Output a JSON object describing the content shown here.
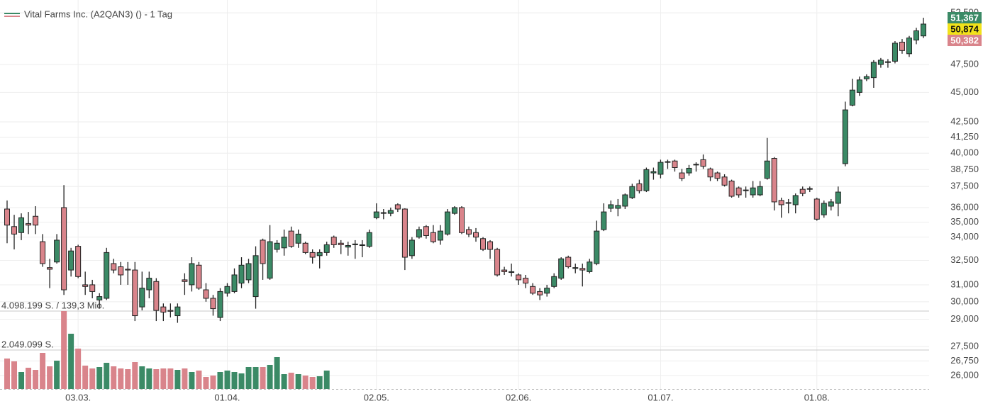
{
  "chart_data": {
    "type": "candlestick",
    "title": "Vital Farms Inc. (A2QAN3) () - 1 Tag",
    "log_scale": true,
    "grid": true,
    "up_color": "#3b8a66",
    "down_color": "#d9848b",
    "legend_position": "top-left",
    "categories": [
      null,
      null,
      null,
      null,
      null,
      null,
      null,
      null,
      null,
      null,
      "03.03.",
      null,
      null,
      null,
      null,
      null,
      null,
      null,
      null,
      null,
      null,
      null,
      null,
      null,
      null,
      null,
      null,
      null,
      null,
      null,
      null,
      "01.04.",
      null,
      null,
      null,
      null,
      null,
      null,
      null,
      null,
      null,
      null,
      null,
      null,
      null,
      null,
      null,
      null,
      null,
      null,
      null,
      null,
      "02.05.",
      null,
      null,
      null,
      null,
      null,
      null,
      null,
      null,
      null,
      null,
      null,
      null,
      null,
      null,
      null,
      null,
      null,
      null,
      null,
      "02.06.",
      null,
      null,
      null,
      null,
      null,
      null,
      null,
      null,
      null,
      null,
      null,
      null,
      null,
      null,
      null,
      null,
      null,
      null,
      null,
      "01.07.",
      null,
      null,
      null,
      null,
      null,
      null,
      null,
      null,
      null,
      null,
      null,
      null,
      null,
      null,
      null,
      null,
      null,
      null,
      null,
      null,
      null,
      "01.08.",
      null,
      null,
      null,
      null,
      null,
      null,
      null,
      null,
      null,
      null,
      null,
      null,
      null,
      null,
      null
    ],
    "open": [
      35.9,
      34.7,
      34.3,
      34.9,
      35.4,
      33.7,
      32.05,
      32.4,
      36.0,
      31.9,
      33.4,
      31.0,
      31.0,
      30.1,
      30.2,
      32.3,
      32.1,
      31.95,
      31.9,
      29.7,
      30.7,
      31.2,
      29.7,
      29.5,
      29.2,
      31.3,
      31.0,
      32.2,
      30.7,
      30.2,
      29.1,
      30.5,
      30.6,
      31.1,
      31.3,
      30.3,
      33.8,
      31.4,
      33.2,
      33.3,
      34.4,
      33.6,
      33.6,
      33.0,
      32.8,
      33.0,
      34.0,
      33.6,
      33.35,
      33.5,
      33.45,
      33.4,
      35.3,
      35.6,
      35.6,
      36.2,
      35.9,
      32.8,
      34.0,
      34.7,
      34.3,
      33.8,
      34.2,
      35.6,
      36.0,
      34.5,
      34.3,
      33.9,
      33.7,
      33.2,
      31.9,
      31.75,
      31.6,
      31.4,
      30.9,
      30.6,
      30.5,
      30.9,
      31.4,
      32.7,
      32.0,
      32.0,
      31.8,
      32.3,
      34.5,
      35.95,
      35.95,
      36.1,
      36.7,
      37.7,
      37.2,
      38.5,
      38.4,
      39.3,
      39.4,
      38.5,
      38.5,
      39.1,
      39.5,
      38.8,
      38.5,
      38.2,
      37.9,
      37.4,
      37.25,
      36.9,
      36.9,
      38.1,
      39.6,
      36.5,
      36.35,
      36.2,
      37.3,
      37.3,
      36.6,
      35.5,
      36.1,
      36.3,
      39.2,
      43.9,
      45.0,
      46.2,
      46.3,
      47.5,
      47.7,
      47.8,
      49.6,
      48.5,
      49.8,
      50.2
    ],
    "high": [
      36.5,
      35.5,
      35.6,
      35.7,
      36.1,
      34.2,
      32.6,
      34.2,
      37.6,
      33.3,
      33.5,
      31.8,
      31.3,
      30.5,
      33.3,
      32.6,
      32.4,
      32.4,
      32.4,
      31.8,
      31.8,
      31.4,
      29.9,
      29.9,
      29.9,
      31.7,
      32.7,
      32.4,
      31.1,
      30.4,
      30.8,
      31.1,
      32.0,
      32.7,
      32.6,
      33.4,
      33.9,
      34.8,
      33.8,
      34.5,
      34.7,
      34.5,
      33.7,
      33.2,
      33.2,
      33.7,
      34.1,
      33.8,
      33.7,
      33.8,
      33.8,
      34.5,
      36.3,
      35.9,
      36.0,
      36.3,
      35.95,
      34.0,
      34.7,
      34.8,
      34.8,
      34.8,
      35.9,
      36.1,
      36.1,
      34.7,
      34.6,
      34.0,
      33.8,
      33.3,
      32.1,
      32.3,
      31.7,
      31.6,
      31.1,
      30.8,
      31.0,
      31.7,
      32.7,
      32.8,
      32.3,
      32.3,
      32.6,
      35.1,
      36.3,
      36.5,
      36.6,
      37.0,
      37.7,
      38.0,
      38.9,
      38.9,
      39.5,
      39.5,
      39.5,
      38.8,
      39.1,
      39.3,
      39.9,
      38.9,
      38.6,
      38.4,
      38.0,
      37.5,
      37.5,
      37.9,
      37.9,
      41.2,
      39.7,
      36.7,
      36.6,
      37.0,
      37.5,
      37.5,
      36.7,
      36.5,
      36.6,
      37.5,
      44.2,
      46.2,
      46.4,
      46.6,
      47.9,
      48.1,
      48.0,
      49.7,
      49.9,
      50.2,
      51.0,
      52.0
    ],
    "low": [
      33.6,
      33.2,
      33.8,
      34.2,
      34.2,
      32.1,
      30.8,
      32.3,
      30.4,
      31.5,
      31.4,
      30.4,
      30.2,
      29.6,
      30.1,
      31.7,
      31.0,
      31.0,
      28.9,
      29.5,
      30.2,
      28.9,
      28.9,
      29.1,
      28.8,
      30.4,
      30.6,
      30.7,
      30.0,
      29.2,
      28.9,
      30.3,
      30.5,
      30.8,
      31.1,
      29.6,
      31.3,
      31.3,
      33.0,
      32.8,
      33.3,
      33.3,
      32.9,
      32.3,
      32.0,
      32.8,
      33.3,
      32.9,
      32.8,
      32.6,
      32.7,
      33.3,
      35.2,
      35.2,
      35.4,
      35.7,
      31.9,
      32.6,
      33.9,
      33.9,
      33.6,
      33.5,
      34.1,
      35.5,
      34.2,
      34.0,
      33.7,
      33.1,
      32.6,
      31.5,
      31.6,
      31.5,
      31.0,
      30.8,
      30.4,
      30.1,
      30.3,
      30.8,
      31.3,
      32.0,
      31.7,
      30.9,
      31.7,
      32.2,
      34.4,
      35.7,
      35.4,
      35.9,
      36.6,
      37.0,
      37.1,
      38.0,
      38.1,
      38.8,
      38.6,
      37.9,
      38.3,
      38.6,
      38.8,
      37.9,
      37.9,
      37.5,
      36.7,
      36.7,
      36.7,
      36.7,
      36.8,
      38.0,
      35.8,
      35.3,
      35.6,
      35.6,
      36.8,
      37.1,
      35.1,
      35.3,
      35.8,
      35.4,
      39.0,
      43.8,
      44.7,
      46.0,
      45.4,
      47.2,
      47.2,
      47.6,
      48.5,
      48.2,
      49.4,
      50.0
    ],
    "close": [
      34.8,
      34.2,
      35.3,
      34.8,
      34.8,
      32.3,
      31.95,
      33.8,
      30.7,
      33.1,
      31.5,
      30.9,
      30.6,
      30.3,
      33.0,
      31.9,
      31.6,
      31.9,
      29.2,
      30.8,
      31.4,
      29.5,
      29.4,
      29.45,
      29.7,
      31.2,
      32.3,
      30.8,
      30.2,
      29.6,
      30.6,
      30.9,
      31.6,
      32.2,
      32.3,
      32.8,
      32.3,
      33.7,
      33.6,
      34.0,
      33.4,
      34.2,
      33.0,
      32.7,
      33.0,
      33.5,
      33.5,
      33.5,
      33.45,
      33.55,
      33.5,
      34.3,
      35.7,
      35.65,
      35.8,
      35.9,
      32.7,
      33.8,
      34.5,
      34.1,
      33.7,
      34.4,
      35.7,
      36.0,
      34.3,
      34.2,
      34.0,
      33.2,
      33.2,
      31.6,
      31.8,
      31.8,
      31.3,
      31.1,
      30.5,
      30.4,
      30.8,
      31.5,
      32.6,
      32.1,
      32.05,
      31.9,
      32.4,
      34.4,
      35.7,
      36.2,
      36.15,
      36.9,
      37.5,
      37.2,
      38.75,
      38.6,
      39.3,
      39.35,
      38.9,
      38.1,
      38.85,
      39.15,
      39.0,
      38.2,
      38.1,
      37.6,
      36.8,
      36.9,
      37.2,
      37.4,
      37.5,
      39.4,
      36.4,
      36.2,
      36.3,
      36.85,
      37.0,
      37.35,
      35.2,
      36.3,
      36.4,
      37.1,
      43.5,
      45.2,
      46.1,
      46.4,
      47.7,
      47.9,
      47.75,
      49.5,
      48.8,
      50.0,
      50.7,
      51.367
    ],
    "volume": [
      1602000,
      1453000,
      894000,
      1118000,
      1006000,
      1900000,
      1192000,
      1490000,
      4098199,
      2906000,
      2124000,
      1229000,
      1080000,
      1155000,
      1378000,
      1192000,
      1080000,
      1043000,
      1416000,
      1192000,
      1080000,
      1043000,
      1080000,
      1080000,
      1006000,
      1080000,
      894000,
      969000,
      633000,
      708000,
      894000,
      969000,
      894000,
      820000,
      1155000,
      1155000,
      1155000,
      1267000,
      1677000,
      782000,
      857000,
      782000,
      708000,
      633000,
      671000,
      969000,
      null,
      null,
      null,
      null,
      null,
      null,
      null,
      null,
      null,
      null,
      null,
      null,
      null,
      null,
      null,
      null,
      null,
      null,
      null,
      null,
      null,
      null,
      null,
      null,
      null,
      null,
      null,
      null,
      null,
      null,
      null,
      null,
      null,
      null,
      null,
      null,
      null,
      null,
      null,
      null,
      null,
      null,
      null,
      null,
      null,
      null,
      null,
      null,
      null,
      null,
      null,
      null,
      null,
      null,
      null,
      null,
      null,
      null,
      null,
      null,
      null,
      null,
      null,
      null,
      null,
      null,
      null,
      null,
      null,
      null,
      null,
      null,
      null,
      null,
      null,
      null,
      null,
      null,
      null,
      null,
      null,
      null,
      null,
      null
    ],
    "ylim": [
      25.3,
      53.45
    ],
    "yticks": [
      {
        "value": 52.5,
        "label": "52,500"
      },
      {
        "value": 47.5,
        "label": "47,500"
      },
      {
        "value": 45,
        "label": "45,000"
      },
      {
        "value": 42.5,
        "label": "42,500"
      },
      {
        "value": 41.25,
        "label": "41,250"
      },
      {
        "value": 40,
        "label": "40,000"
      },
      {
        "value": 38.75,
        "label": "38,750"
      },
      {
        "value": 37.5,
        "label": "37,500"
      },
      {
        "value": 36,
        "label": "36,000"
      },
      {
        "value": 35,
        "label": "35,000"
      },
      {
        "value": 34,
        "label": "34,000"
      },
      {
        "value": 32.5,
        "label": "32,500"
      },
      {
        "value": 31,
        "label": "31,000"
      },
      {
        "value": 30,
        "label": "30,000"
      },
      {
        "value": 29,
        "label": "29,000"
      },
      {
        "value": 27.5,
        "label": "27,500"
      },
      {
        "value": 26.75,
        "label": "26,750"
      },
      {
        "value": 26,
        "label": "26,000"
      }
    ],
    "volume_lim": [
      0,
      4098199
    ],
    "volume_ticks": [
      {
        "value": 4098199,
        "label": "4.098.199 S. / 139,3 Mio."
      },
      {
        "value": 2049099,
        "label": "2.049.099 S."
      }
    ],
    "price_badges": [
      {
        "value": 51.367,
        "label": "51,367",
        "color": "#3b8a66"
      },
      {
        "value": 50.874,
        "label": "50,874",
        "color": "#f2e21a"
      },
      {
        "value": 50.382,
        "label": "50,382",
        "color": "#d9848b"
      }
    ]
  }
}
